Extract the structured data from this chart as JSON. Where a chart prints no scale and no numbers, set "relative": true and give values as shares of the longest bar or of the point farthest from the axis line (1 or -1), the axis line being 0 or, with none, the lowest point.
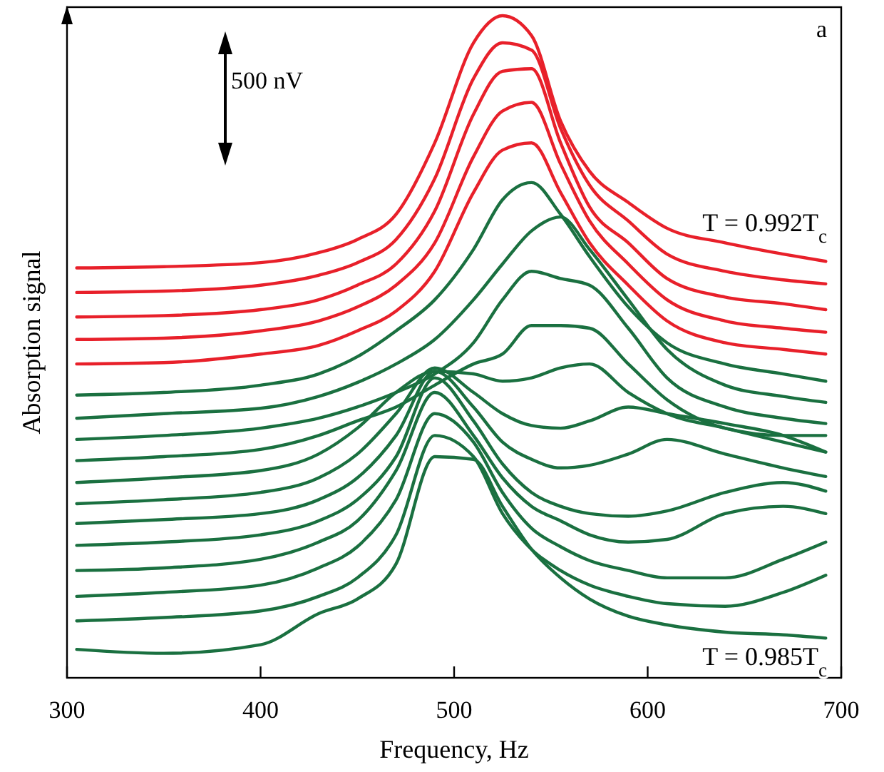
{
  "chart_data": {
    "type": "line",
    "relative": true,
    "xlabel": "Frequency, Hz",
    "ylabel": "Absorption signal",
    "xlim": [
      300,
      700
    ],
    "xticks": [
      300,
      400,
      500,
      600,
      700
    ],
    "grid": false,
    "marker": "none",
    "line_style": "solid",
    "annotations": [
      "500 nV",
      "a",
      "T = 0.992T$_{c}$",
      "T = 0.985T$_{c}$"
    ],
    "x": [
      305,
      350,
      400,
      430,
      450,
      470,
      490,
      510,
      525,
      540,
      555,
      570,
      590,
      610,
      640,
      670,
      692
    ],
    "series": [
      {
        "color": "#e8202a",
        "values": [
          0.619,
          0.621,
          0.627,
          0.642,
          0.662,
          0.7,
          0.808,
          0.959,
          1,
          0.97,
          0.841,
          0.765,
          0.718,
          0.679,
          0.657,
          0.64,
          0.629
        ]
      },
      {
        "color": "#e8202a",
        "values": [
          0.582,
          0.584,
          0.593,
          0.608,
          0.627,
          0.662,
          0.754,
          0.905,
          0.959,
          0.948,
          0.83,
          0.744,
          0.69,
          0.64,
          0.614,
          0.601,
          0.595
        ]
      },
      {
        "color": "#e8202a",
        "values": [
          0.545,
          0.547,
          0.556,
          0.571,
          0.593,
          0.625,
          0.705,
          0.851,
          0.916,
          0.92,
          0.808,
          0.711,
          0.657,
          0.603,
          0.575,
          0.565,
          0.556
        ]
      },
      {
        "color": "#e8202a",
        "values": [
          0.511,
          0.513,
          0.524,
          0.539,
          0.56,
          0.593,
          0.657,
          0.787,
          0.856,
          0.869,
          0.776,
          0.69,
          0.625,
          0.571,
          0.539,
          0.528,
          0.522
        ]
      },
      {
        "color": "#e8202a",
        "values": [
          0.474,
          0.476,
          0.489,
          0.502,
          0.524,
          0.554,
          0.614,
          0.733,
          0.797,
          0.808,
          0.733,
          0.657,
          0.593,
          0.539,
          0.506,
          0.496,
          0.489
        ]
      },
      {
        "color": "#1a7040",
        "values": [
          0.427,
          0.431,
          0.442,
          0.459,
          0.485,
          0.524,
          0.571,
          0.647,
          0.722,
          0.748,
          0.7,
          0.636,
          0.56,
          0.506,
          0.474,
          0.459,
          0.448
        ]
      },
      {
        "color": "#1a7040",
        "values": [
          0.392,
          0.399,
          0.407,
          0.425,
          0.446,
          0.474,
          0.511,
          0.571,
          0.625,
          0.675,
          0.696,
          0.647,
          0.571,
          0.496,
          0.442,
          0.425,
          0.416
        ]
      },
      {
        "color": "#1a7040",
        "values": [
          0.36,
          0.366,
          0.377,
          0.392,
          0.409,
          0.431,
          0.459,
          0.506,
          0.571,
          0.614,
          0.603,
          0.593,
          0.528,
          0.453,
          0.409,
          0.392,
          0.384
        ]
      },
      {
        "color": "#1a7040",
        "values": [
          0.328,
          0.334,
          0.345,
          0.366,
          0.388,
          0.409,
          0.442,
          0.474,
          0.489,
          0.532,
          0.532,
          0.528,
          0.474,
          0.42,
          0.377,
          0.366,
          0.366
        ]
      },
      {
        "color": "#1a7040",
        "values": [
          0.295,
          0.302,
          0.313,
          0.338,
          0.377,
          0.431,
          0.463,
          0.459,
          0.448,
          0.453,
          0.468,
          0.474,
          0.431,
          0.399,
          0.377,
          0.356,
          0.341
        ]
      },
      {
        "color": "#1a7040",
        "values": [
          0.263,
          0.269,
          0.28,
          0.302,
          0.338,
          0.399,
          0.468,
          0.431,
          0.399,
          0.381,
          0.377,
          0.388,
          0.409,
          0.399,
          0.384,
          0.366,
          0.341
        ]
      },
      {
        "color": "#1a7040",
        "values": [
          0.233,
          0.239,
          0.248,
          0.269,
          0.302,
          0.366,
          0.463,
          0.409,
          0.356,
          0.33,
          0.317,
          0.321,
          0.338,
          0.36,
          0.338,
          0.317,
          0.304
        ]
      },
      {
        "color": "#1a7040",
        "values": [
          0.2,
          0.205,
          0.216,
          0.237,
          0.269,
          0.334,
          0.453,
          0.388,
          0.323,
          0.28,
          0.259,
          0.248,
          0.244,
          0.252,
          0.28,
          0.295,
          0.282
        ]
      },
      {
        "color": "#1a7040",
        "values": [
          0.162,
          0.166,
          0.179,
          0.205,
          0.237,
          0.313,
          0.431,
          0.366,
          0.302,
          0.259,
          0.237,
          0.216,
          0.205,
          0.209,
          0.248,
          0.259,
          0.248
        ]
      },
      {
        "color": "#1a7040",
        "values": [
          0.123,
          0.129,
          0.14,
          0.166,
          0.198,
          0.269,
          0.399,
          0.356,
          0.28,
          0.226,
          0.198,
          0.177,
          0.162,
          0.151,
          0.151,
          0.179,
          0.205
        ]
      },
      {
        "color": "#1a7040",
        "values": [
          0.086,
          0.091,
          0.101,
          0.123,
          0.151,
          0.216,
          0.366,
          0.334,
          0.248,
          0.194,
          0.162,
          0.14,
          0.123,
          0.112,
          0.108,
          0.129,
          0.155
        ]
      },
      {
        "color": "#1a7040",
        "values": [
          0.043,
          0.037,
          0.05,
          0.097,
          0.119,
          0.172,
          0.334,
          0.33,
          0.259,
          0.194,
          0.151,
          0.119,
          0.093,
          0.08,
          0.069,
          0.065,
          0.06
        ]
      }
    ]
  }
}
